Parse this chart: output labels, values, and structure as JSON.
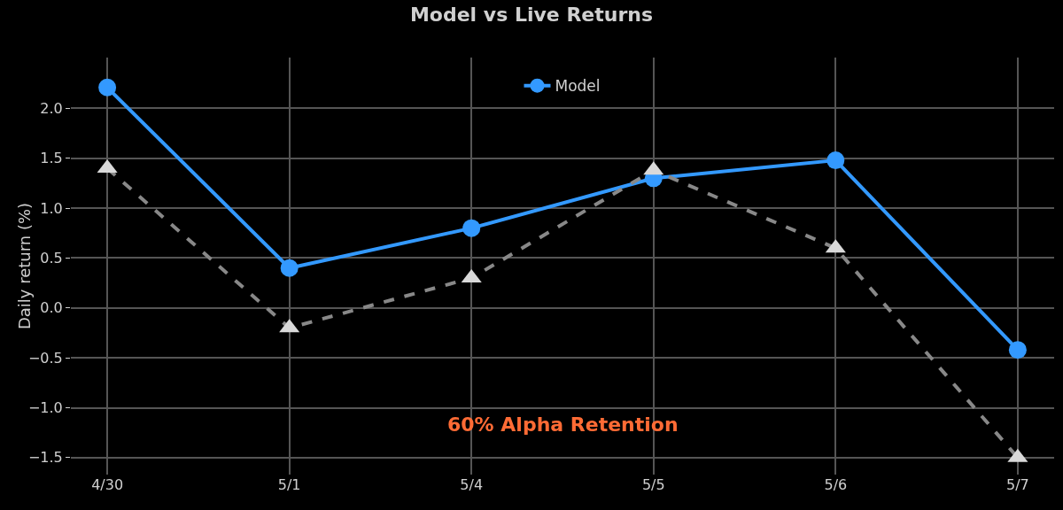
{
  "chart_data": {
    "type": "line",
    "title": "Model vs Live Returns",
    "ylabel": "Daily return (%)",
    "categories": [
      "4/30",
      "5/1",
      "5/4",
      "5/5",
      "5/6",
      "5/7"
    ],
    "series": [
      {
        "name": "Model",
        "color": "#3399ff",
        "values": [
          2.21,
          0.4,
          0.8,
          1.3,
          1.48,
          -0.42
        ],
        "marker": "circle",
        "line_style": "solid"
      },
      {
        "color": "#d9d9d9",
        "values": [
          1.4,
          -0.2,
          0.3,
          1.38,
          0.6,
          -1.5
        ],
        "marker": "triangle",
        "line_style": "dashed"
      }
    ],
    "ylim": [
      -1.67,
      2.51
    ],
    "yticks": [
      {
        "value": -1.5,
        "label": "−1.5"
      },
      {
        "value": -1,
        "label": "−1.0"
      },
      {
        "value": -0.5,
        "label": "−0.5"
      },
      {
        "value": 0,
        "label": "0.0"
      },
      {
        "value": 0.5,
        "label": "0.5"
      },
      {
        "value": 1,
        "label": "1.0"
      },
      {
        "value": 1.5,
        "label": "1.5"
      },
      {
        "value": 2,
        "label": "2.0"
      }
    ],
    "grid": true,
    "legend": "top",
    "annotations": [
      "60% Alpha Retention"
    ]
  }
}
